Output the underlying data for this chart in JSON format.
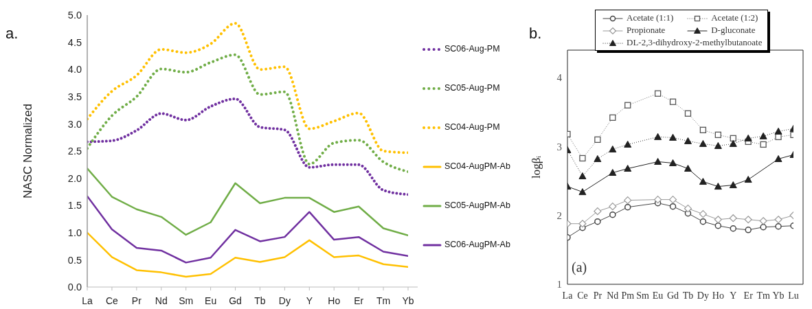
{
  "chart_data": [
    {
      "type": "line",
      "title": "a.",
      "ylabel": "NASC Normalized",
      "categories": [
        "La",
        "Ce",
        "Pr",
        "Nd",
        "Sm",
        "Eu",
        "Gd",
        "Tb",
        "Dy",
        "Y",
        "Ho",
        "Er",
        "Tm",
        "Yb"
      ],
      "ylim": [
        0,
        5
      ],
      "yticks": [
        {
          "value": 0,
          "label": "0.0"
        },
        {
          "value": 0.5,
          "label": "0.5"
        },
        {
          "value": 1,
          "label": "1.0"
        },
        {
          "value": 1.5,
          "label": "1.5"
        },
        {
          "value": 2,
          "label": "2.0"
        },
        {
          "value": 2.5,
          "label": "2.5"
        },
        {
          "value": 3,
          "label": "3.0"
        },
        {
          "value": 3.5,
          "label": "3.5"
        },
        {
          "value": 4,
          "label": "4.0"
        },
        {
          "value": 4.5,
          "label": "4.5"
        },
        {
          "value": 5,
          "label": "5.0"
        }
      ],
      "legend": "right",
      "series": [
        {
          "name": "SC06-Aug-PM",
          "color": "#7030a0",
          "line_style": "dotted",
          "values": [
            2.67,
            2.69,
            2.88,
            3.19,
            3.07,
            3.32,
            3.46,
            2.94,
            2.89,
            2.2,
            2.25,
            2.25,
            1.78,
            1.7
          ]
        },
        {
          "name": "SC05-Aug-PM",
          "color": "#70ad47",
          "line_style": "dotted",
          "values": [
            2.55,
            3.15,
            3.5,
            4.01,
            3.95,
            4.13,
            4.27,
            3.54,
            3.59,
            2.26,
            2.65,
            2.7,
            2.3,
            2.12
          ]
        },
        {
          "name": "SC04-Aug-PM",
          "color": "#ffc000",
          "line_style": "dotted",
          "values": [
            3.09,
            3.6,
            3.89,
            4.37,
            4.31,
            4.47,
            4.85,
            4.0,
            4.05,
            2.91,
            3.05,
            3.2,
            2.5,
            2.47
          ]
        },
        {
          "name": "SC04-AugPM-Ab",
          "color": "#ffc000",
          "line_style": "solid",
          "values": [
            1.0,
            0.55,
            0.31,
            0.27,
            0.19,
            0.24,
            0.54,
            0.46,
            0.55,
            0.86,
            0.55,
            0.58,
            0.42,
            0.37
          ]
        },
        {
          "name": "SC05-AugPM-Ab",
          "color": "#70ad47",
          "line_style": "solid",
          "values": [
            2.18,
            1.66,
            1.43,
            1.29,
            0.96,
            1.19,
            1.91,
            1.54,
            1.64,
            1.64,
            1.38,
            1.48,
            1.08,
            0.95
          ]
        },
        {
          "name": "SC06-AugPM-Ab",
          "color": "#7030a0",
          "line_style": "solid",
          "values": [
            1.67,
            1.06,
            0.72,
            0.67,
            0.45,
            0.54,
            1.05,
            0.84,
            0.92,
            1.38,
            0.87,
            0.92,
            0.65,
            0.57
          ]
        }
      ]
    },
    {
      "type": "line",
      "title": "b.",
      "ylabel": "logβᵢ",
      "annotations": [
        "(a)"
      ],
      "categories": [
        "La",
        "Ce",
        "Pr",
        "Nd",
        "Pm",
        "Sm",
        "Eu",
        "Gd",
        "Tb",
        "Dy",
        "Ho",
        "Y",
        "Er",
        "Tm",
        "Yb",
        "Lu"
      ],
      "ylim": [
        1,
        4.4
      ],
      "yticks": [
        1,
        2,
        3,
        4
      ],
      "legend": "top",
      "series": [
        {
          "name": "Acetate (1:1)",
          "color": "#444444",
          "marker": "circle",
          "line_style": "solid",
          "values": [
            1.68,
            1.82,
            1.91,
            2.01,
            2.12,
            null,
            2.18,
            2.13,
            2.03,
            1.91,
            1.85,
            1.81,
            1.79,
            1.83,
            1.84,
            1.85
          ]
        },
        {
          "name": "Acetate (1:2)",
          "color": "#555555",
          "marker": "square",
          "line_style": "dotted",
          "values": [
            3.18,
            2.83,
            3.1,
            3.42,
            3.6,
            null,
            3.77,
            3.65,
            3.48,
            3.24,
            3.17,
            3.12,
            3.07,
            3.03,
            3.14,
            3.17
          ]
        },
        {
          "name": "Propionate",
          "color": "#999999",
          "marker": "diamond",
          "line_style": "solid",
          "values": [
            1.88,
            1.88,
            2.06,
            2.13,
            2.22,
            null,
            2.23,
            2.23,
            2.1,
            2.02,
            1.94,
            1.96,
            1.94,
            1.92,
            1.94,
            2.0
          ]
        },
        {
          "name": "D-gluconate",
          "color": "#222222",
          "marker": "triangle",
          "line_style": "solid",
          "values": [
            2.42,
            2.34,
            null,
            2.62,
            2.68,
            null,
            2.78,
            2.76,
            2.68,
            2.49,
            2.42,
            2.44,
            2.52,
            null,
            2.82,
            2.88
          ]
        },
        {
          "name": "DL-2,3-dihydroxy-2-methylbutanoate",
          "color": "#222222",
          "marker": "triangle",
          "line_style": "dotted",
          "values": [
            2.95,
            2.57,
            2.82,
            2.96,
            3.03,
            null,
            3.14,
            3.13,
            3.08,
            3.04,
            3.01,
            3.04,
            3.12,
            3.15,
            3.22,
            3.26
          ]
        }
      ]
    }
  ]
}
